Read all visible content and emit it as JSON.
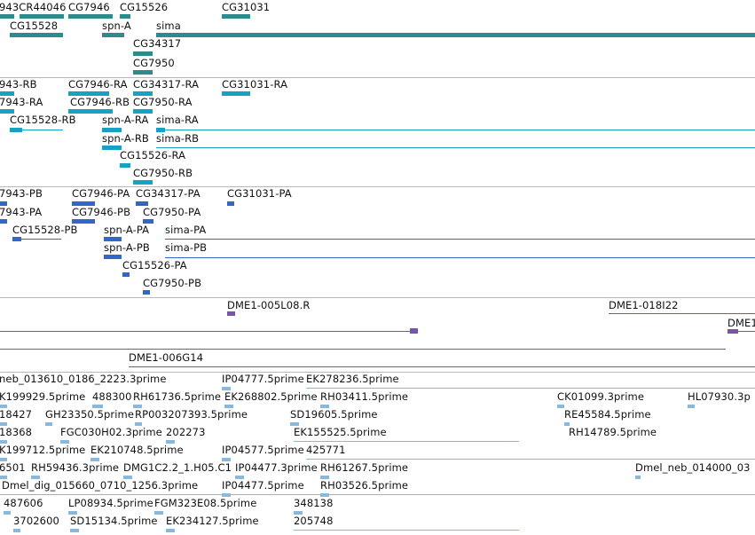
{
  "colors": {
    "gene": "#2e8b8b",
    "transcript": "#17a2c4",
    "protein": "#3366cc",
    "clone": "#7755aa",
    "est": "#8ab8dd",
    "separator": "#b8b8b8"
  },
  "gene_track": {
    "labels": [
      "943CR44046",
      "CG7946",
      "CG15526",
      "CG31031",
      "CG15528",
      "spn-A",
      "sima",
      "CG34317",
      "CG7950"
    ]
  },
  "transcript_track": {
    "labels": [
      "943-RB",
      "CG7946-RA",
      "CG34317-RA",
      "CG31031-RA",
      "7943-RA",
      "CG7946-RB",
      "CG7950-RA",
      "CG15528-RB",
      "spn-A-RA",
      "sima-RA",
      "spn-A-RB",
      "sima-RB",
      "CG15526-RA",
      "CG7950-RB"
    ]
  },
  "protein_track": {
    "labels": [
      "7943-PB",
      "CG7946-PA",
      "CG34317-PA",
      "CG31031-PA",
      "7943-PA",
      "CG7946-PB",
      "CG7950-PA",
      "CG15528-PB",
      "spn-A-PA",
      "sima-PA",
      "spn-A-PB",
      "sima-PB",
      "CG15526-PA",
      "CG7950-PB"
    ]
  },
  "clone_track": {
    "labels": [
      "DME1-005L08.R",
      "DME1-018I22",
      "DME1",
      "DME1-006G14"
    ]
  },
  "est_track": {
    "labels": [
      "neb_013610_0186_2223.3prime",
      "IP04777.5prime",
      "EK278236.5prime",
      "K199929.5prime",
      "488300",
      "RH61736.5prime",
      "EK268802.5prime",
      "RH03411.5prime",
      "CK01099.3prime",
      "HL07930.3p",
      "18427",
      "GH23350.5prime",
      "RP003207393.5prime",
      "SD19605.5prime",
      "RE45584.5prime",
      "18368",
      "FGC030H02.3prime",
      "202273",
      "EK155525.5prime",
      "RH14789.5prime",
      "K199712.5prime",
      "EK210748.5prime",
      "IP04577.5prime",
      "425771",
      "6501",
      "RH59436.3prime",
      "DMG1C2.2_1.H05.C1",
      "IP04477.3prime",
      "RH61267.5prime",
      "Dmel_neb_014000_03",
      "Dmel_dig_015660_0710_1256.3prime",
      "IP04477.5prime",
      "RH03526.5prime",
      "487606",
      "LP08934.5prime",
      "FGM323E08.5prime",
      "348138",
      "3702600",
      "SD15134.5prime",
      "EK234127.5prime",
      "205748"
    ]
  }
}
